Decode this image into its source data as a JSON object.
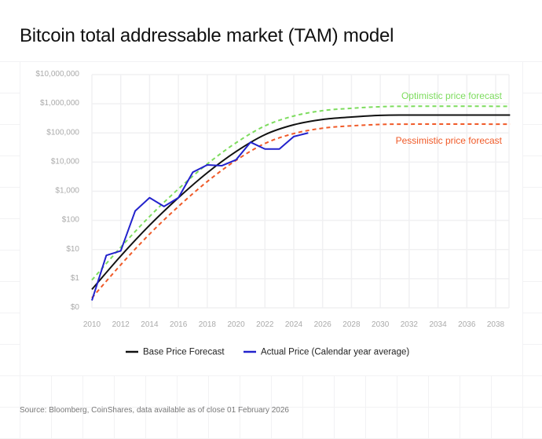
{
  "title": "Bitcoin total addressable market (TAM) model",
  "source": "Source: Bloomberg, CoinShares, data available as of close 01 February 2026",
  "chart_data": {
    "type": "line",
    "title": "Bitcoin total addressable market (TAM) model",
    "xlabel": "",
    "ylabel": "",
    "x_range": [
      2010,
      2039
    ],
    "y_scale": "log",
    "y_range": [
      0.1,
      10000000
    ],
    "grid": true,
    "legend_placement": "bottom",
    "x_ticks": [
      "2010",
      "2012",
      "2014",
      "2016",
      "2018",
      "2020",
      "2022",
      "2024",
      "2026",
      "2028",
      "2030",
      "2032",
      "2034",
      "2036",
      "2038"
    ],
    "y_ticks": [
      {
        "value": 0.1,
        "label": "$0"
      },
      {
        "value": 1,
        "label": "$1"
      },
      {
        "value": 10,
        "label": "$10"
      },
      {
        "value": 100,
        "label": "$100"
      },
      {
        "value": 1000,
        "label": "$1,000"
      },
      {
        "value": 10000,
        "label": "$10,000"
      },
      {
        "value": 100000,
        "label": "$100,000"
      },
      {
        "value": 1000000,
        "label": "$1,000,000"
      },
      {
        "value": 10000000,
        "label": "$10,000,000"
      }
    ],
    "series": [
      {
        "name": "Base Price Forecast",
        "color": "#111111",
        "style": "solid",
        "in_legend": true,
        "x": [
          2010,
          2012,
          2014,
          2016,
          2018,
          2020,
          2022,
          2024,
          2026,
          2028,
          2030,
          2032,
          2039
        ],
        "values": [
          0.43,
          6,
          68,
          600,
          4300,
          23000,
          87000,
          190000,
          290000,
          350000,
          400000,
          410000,
          410000
        ]
      },
      {
        "name": "Actual Price (Calendar year average)",
        "color": "#2222cc",
        "style": "solid",
        "in_legend": true,
        "x": [
          2010,
          2011,
          2012,
          2013,
          2014,
          2015,
          2016,
          2017,
          2018,
          2019,
          2020,
          2021,
          2022,
          2023,
          2024,
          2025
        ],
        "values": [
          0.18,
          6.3,
          9,
          210,
          600,
          300,
          600,
          4500,
          8000,
          7500,
          12000,
          48000,
          28000,
          28000,
          75000,
          100000
        ]
      },
      {
        "name": "Optimistic price forecast",
        "color": "#7ddc5e",
        "style": "dashed",
        "in_legend": false,
        "x": [
          2010,
          2012,
          2014,
          2016,
          2018,
          2020,
          2022,
          2024,
          2026,
          2028,
          2030,
          2032,
          2039
        ],
        "values": [
          0.9,
          12,
          136,
          1200,
          8600,
          46000,
          174000,
          380000,
          580000,
          700000,
          790000,
          820000,
          820000
        ]
      },
      {
        "name": "Pessimistic price forecast",
        "color": "#f05a28",
        "style": "dashed",
        "in_legend": false,
        "x": [
          2010,
          2012,
          2014,
          2016,
          2018,
          2020,
          2022,
          2024,
          2026,
          2028,
          2030,
          2032,
          2039
        ],
        "values": [
          0.22,
          3,
          34,
          300,
          2150,
          11500,
          43500,
          95000,
          145000,
          175000,
          195000,
          200000,
          200000
        ]
      }
    ],
    "annotations": [
      {
        "text": "Optimistic price forecast",
        "color": "#7ddc5e"
      },
      {
        "text": "Pessimistic price forecast",
        "color": "#f05a28"
      }
    ]
  }
}
